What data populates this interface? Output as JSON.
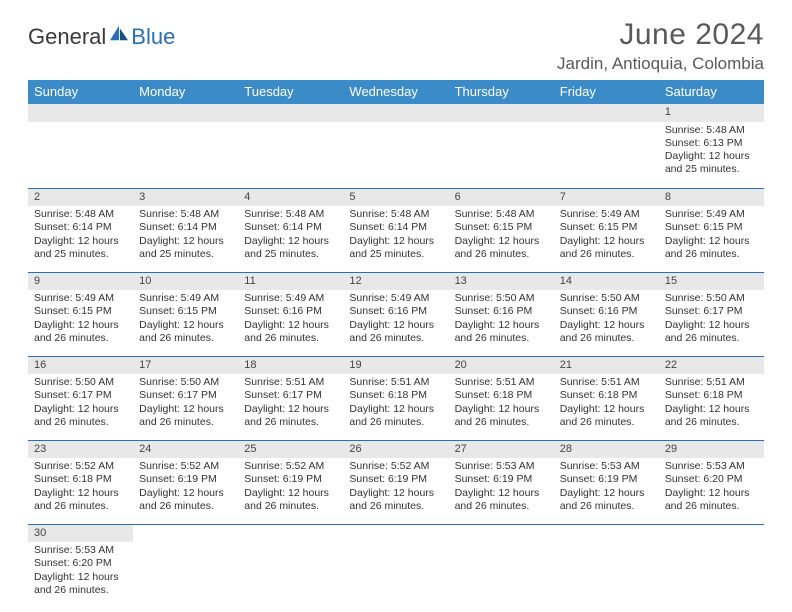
{
  "logo": {
    "text1": "General",
    "text2": "Blue"
  },
  "title": "June 2024",
  "location": "Jardin, Antioquia, Colombia",
  "colors": {
    "header_bg": "#3b8bc9",
    "header_text": "#ffffff",
    "daynum_bg": "#e8e8e8",
    "rule": "#2a6fb5",
    "body_text": "#333333",
    "title_text": "#5a5a5a"
  },
  "weekdays": [
    "Sunday",
    "Monday",
    "Tuesday",
    "Wednesday",
    "Thursday",
    "Friday",
    "Saturday"
  ],
  "weeks": [
    [
      null,
      null,
      null,
      null,
      null,
      null,
      {
        "n": "1",
        "sr": "5:48 AM",
        "ss": "6:13 PM",
        "dl": "12 hours and 25 minutes."
      }
    ],
    [
      {
        "n": "2",
        "sr": "5:48 AM",
        "ss": "6:14 PM",
        "dl": "12 hours and 25 minutes."
      },
      {
        "n": "3",
        "sr": "5:48 AM",
        "ss": "6:14 PM",
        "dl": "12 hours and 25 minutes."
      },
      {
        "n": "4",
        "sr": "5:48 AM",
        "ss": "6:14 PM",
        "dl": "12 hours and 25 minutes."
      },
      {
        "n": "5",
        "sr": "5:48 AM",
        "ss": "6:14 PM",
        "dl": "12 hours and 25 minutes."
      },
      {
        "n": "6",
        "sr": "5:48 AM",
        "ss": "6:15 PM",
        "dl": "12 hours and 26 minutes."
      },
      {
        "n": "7",
        "sr": "5:49 AM",
        "ss": "6:15 PM",
        "dl": "12 hours and 26 minutes."
      },
      {
        "n": "8",
        "sr": "5:49 AM",
        "ss": "6:15 PM",
        "dl": "12 hours and 26 minutes."
      }
    ],
    [
      {
        "n": "9",
        "sr": "5:49 AM",
        "ss": "6:15 PM",
        "dl": "12 hours and 26 minutes."
      },
      {
        "n": "10",
        "sr": "5:49 AM",
        "ss": "6:15 PM",
        "dl": "12 hours and 26 minutes."
      },
      {
        "n": "11",
        "sr": "5:49 AM",
        "ss": "6:16 PM",
        "dl": "12 hours and 26 minutes."
      },
      {
        "n": "12",
        "sr": "5:49 AM",
        "ss": "6:16 PM",
        "dl": "12 hours and 26 minutes."
      },
      {
        "n": "13",
        "sr": "5:50 AM",
        "ss": "6:16 PM",
        "dl": "12 hours and 26 minutes."
      },
      {
        "n": "14",
        "sr": "5:50 AM",
        "ss": "6:16 PM",
        "dl": "12 hours and 26 minutes."
      },
      {
        "n": "15",
        "sr": "5:50 AM",
        "ss": "6:17 PM",
        "dl": "12 hours and 26 minutes."
      }
    ],
    [
      {
        "n": "16",
        "sr": "5:50 AM",
        "ss": "6:17 PM",
        "dl": "12 hours and 26 minutes."
      },
      {
        "n": "17",
        "sr": "5:50 AM",
        "ss": "6:17 PM",
        "dl": "12 hours and 26 minutes."
      },
      {
        "n": "18",
        "sr": "5:51 AM",
        "ss": "6:17 PM",
        "dl": "12 hours and 26 minutes."
      },
      {
        "n": "19",
        "sr": "5:51 AM",
        "ss": "6:18 PM",
        "dl": "12 hours and 26 minutes."
      },
      {
        "n": "20",
        "sr": "5:51 AM",
        "ss": "6:18 PM",
        "dl": "12 hours and 26 minutes."
      },
      {
        "n": "21",
        "sr": "5:51 AM",
        "ss": "6:18 PM",
        "dl": "12 hours and 26 minutes."
      },
      {
        "n": "22",
        "sr": "5:51 AM",
        "ss": "6:18 PM",
        "dl": "12 hours and 26 minutes."
      }
    ],
    [
      {
        "n": "23",
        "sr": "5:52 AM",
        "ss": "6:18 PM",
        "dl": "12 hours and 26 minutes."
      },
      {
        "n": "24",
        "sr": "5:52 AM",
        "ss": "6:19 PM",
        "dl": "12 hours and 26 minutes."
      },
      {
        "n": "25",
        "sr": "5:52 AM",
        "ss": "6:19 PM",
        "dl": "12 hours and 26 minutes."
      },
      {
        "n": "26",
        "sr": "5:52 AM",
        "ss": "6:19 PM",
        "dl": "12 hours and 26 minutes."
      },
      {
        "n": "27",
        "sr": "5:53 AM",
        "ss": "6:19 PM",
        "dl": "12 hours and 26 minutes."
      },
      {
        "n": "28",
        "sr": "5:53 AM",
        "ss": "6:19 PM",
        "dl": "12 hours and 26 minutes."
      },
      {
        "n": "29",
        "sr": "5:53 AM",
        "ss": "6:20 PM",
        "dl": "12 hours and 26 minutes."
      }
    ],
    [
      {
        "n": "30",
        "sr": "5:53 AM",
        "ss": "6:20 PM",
        "dl": "12 hours and 26 minutes."
      },
      null,
      null,
      null,
      null,
      null,
      null
    ]
  ],
  "labels": {
    "sunrise": "Sunrise:",
    "sunset": "Sunset:",
    "daylight": "Daylight:"
  }
}
